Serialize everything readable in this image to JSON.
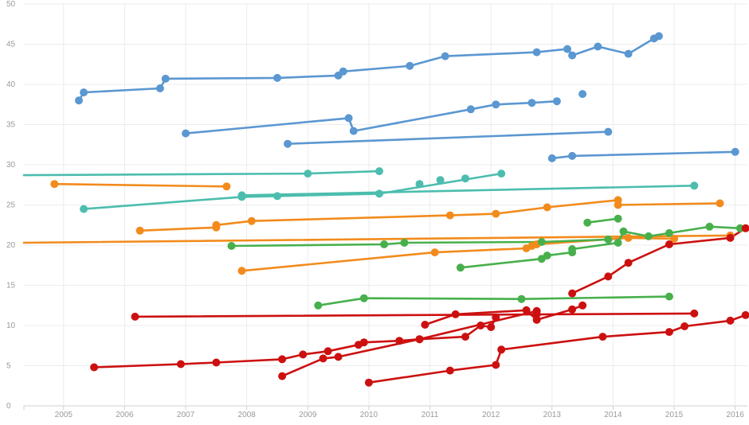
{
  "chart_data": {
    "type": "line",
    "title": "",
    "xlabel": "",
    "ylabel": "",
    "xlim": [
      2004.35,
      2016.2
    ],
    "ylim": [
      0,
      50
    ],
    "grid": true,
    "legend": "none",
    "x_ticks": [
      "2005",
      "2006",
      "2007",
      "2008",
      "2009",
      "2010",
      "2011",
      "2012",
      "2013",
      "2014",
      "2015",
      "2016"
    ],
    "x_tick_values": [
      2005,
      2006,
      2007,
      2008,
      2009,
      2010,
      2011,
      2012,
      2013,
      2014,
      2015,
      2016
    ],
    "y_ticks": [
      "0",
      "5",
      "10",
      "15",
      "20",
      "25",
      "30",
      "35",
      "40",
      "45",
      "50"
    ],
    "y_tick_values": [
      0,
      5,
      10,
      15,
      20,
      25,
      30,
      35,
      40,
      45,
      50
    ],
    "series": [
      {
        "color": "#5b97d1",
        "points": [
          [
            2005.25,
            38
          ],
          [
            2005.33,
            39
          ],
          [
            2006.58,
            39.5
          ],
          [
            2006.67,
            40.7
          ],
          [
            2008.5,
            40.8
          ],
          [
            2009.5,
            41.1
          ],
          [
            2009.58,
            41.6
          ],
          [
            2010.67,
            42.3
          ],
          [
            2011.25,
            43.5
          ],
          [
            2012.75,
            44
          ],
          [
            2013.25,
            44.4
          ],
          [
            2013.33,
            43.6
          ],
          [
            2013.75,
            44.7
          ],
          [
            2014.25,
            43.8
          ],
          [
            2014.67,
            45.7
          ],
          [
            2014.75,
            46
          ]
        ]
      },
      {
        "color": "#5b97d1",
        "points": [
          [
            2007,
            33.9
          ],
          [
            2009.67,
            35.8
          ],
          [
            2009.75,
            34.2
          ],
          [
            2011.67,
            36.9
          ],
          [
            2012.08,
            37.5
          ],
          [
            2012.67,
            37.7
          ],
          [
            2013.08,
            37.9
          ]
        ]
      },
      {
        "color": "#5b97d1",
        "points": [
          [
            2013.5,
            38.8
          ]
        ]
      },
      {
        "color": "#5b97d1",
        "points": [
          [
            2008.67,
            32.6
          ],
          [
            2013.92,
            34.1
          ]
        ]
      },
      {
        "color": "#5b97d1",
        "points": [
          [
            2013,
            30.8
          ],
          [
            2013.33,
            31.1
          ],
          [
            2016,
            31.6
          ]
        ]
      },
      {
        "color": "#4cbdae",
        "points": [
          [
            2004.35,
            28.7
          ],
          [
            2009,
            28.9
          ],
          [
            2010.17,
            29.2
          ]
        ]
      },
      {
        "color": "#4cbdae",
        "points": [
          [
            2005.33,
            24.5
          ],
          [
            2007.92,
            26.0
          ],
          [
            2010.17,
            26.4
          ],
          [
            2012.17,
            28.9
          ]
        ],
        "dot_all": false,
        "dots": [
          [
            2005.33,
            24.5
          ],
          [
            2007.92,
            26.0
          ],
          [
            2008.5,
            26.1
          ],
          [
            2010.17,
            26.4
          ],
          [
            2010.83,
            27.6
          ],
          [
            2011.17,
            28.1
          ],
          [
            2011.58,
            28.3
          ],
          [
            2012.17,
            28.9
          ]
        ]
      },
      {
        "color": "#4cbdae",
        "points": [
          [
            2007.92,
            26.2
          ],
          [
            2015.33,
            27.4
          ]
        ]
      },
      {
        "color": "#f28b1c",
        "points": [
          [
            2004.85,
            27.6
          ],
          [
            2007.67,
            27.3
          ]
        ]
      },
      {
        "color": "#f28b1c",
        "points": [
          [
            2004.35,
            20.3
          ],
          [
            2015.92,
            21.2
          ]
        ]
      },
      {
        "color": "#f28b1c",
        "points": [
          [
            2006.25,
            21.8
          ],
          [
            2007.5,
            22.2
          ],
          [
            2007.5,
            22.5
          ],
          [
            2008.08,
            23
          ],
          [
            2011.33,
            23.7
          ],
          [
            2012.08,
            23.9
          ],
          [
            2012.92,
            24.7
          ],
          [
            2014.08,
            25.6
          ],
          [
            2014.08,
            25
          ],
          [
            2015.75,
            25.2
          ]
        ]
      },
      {
        "color": "#f28b1c",
        "points": [
          [
            2007.92,
            16.8
          ],
          [
            2011.08,
            19.1
          ],
          [
            2012.58,
            19.6
          ],
          [
            2012.67,
            19.9
          ],
          [
            2012.75,
            20.1
          ],
          [
            2014.25,
            20.9
          ],
          [
            2015,
            20.8
          ]
        ]
      },
      {
        "color": "#47b04c",
        "points": [
          [
            2007.75,
            19.9
          ],
          [
            2010.25,
            20.1
          ],
          [
            2010.58,
            20.3
          ],
          [
            2012.83,
            20.4
          ],
          [
            2013.92,
            20.7
          ]
        ]
      },
      {
        "color": "#47b04c",
        "points": [
          [
            2013.58,
            22.8
          ],
          [
            2014.08,
            23.3
          ]
        ]
      },
      {
        "color": "#47b04c",
        "points": [
          [
            2011.5,
            17.2
          ],
          [
            2012.83,
            18.3
          ],
          [
            2012.92,
            18.7
          ],
          [
            2013.33,
            19.1
          ],
          [
            2013.33,
            19.5
          ],
          [
            2014.08,
            20.3
          ],
          [
            2014.17,
            21.7
          ],
          [
            2014.58,
            21.1
          ],
          [
            2014.92,
            21.5
          ],
          [
            2015.58,
            22.3
          ],
          [
            2016.08,
            22.1
          ]
        ]
      },
      {
        "color": "#47b04c",
        "points": [
          [
            2009.17,
            12.5
          ],
          [
            2009.92,
            13.4
          ],
          [
            2012.5,
            13.3
          ],
          [
            2014.92,
            13.6
          ]
        ]
      },
      {
        "color": "#cc1010",
        "points": [
          [
            2006.17,
            11.1
          ],
          [
            2015.33,
            11.5
          ]
        ]
      },
      {
        "color": "#cc1010",
        "points": [
          [
            2005.5,
            4.8
          ],
          [
            2006.92,
            5.2
          ],
          [
            2007.5,
            5.4
          ],
          [
            2008.58,
            5.8
          ],
          [
            2008.92,
            6.4
          ],
          [
            2009.33,
            6.8
          ],
          [
            2009.83,
            7.6
          ],
          [
            2009.92,
            7.9
          ],
          [
            2010.5,
            8.1
          ],
          [
            2010.83,
            8.3
          ],
          [
            2011.58,
            8.6
          ],
          [
            2011.83,
            10
          ],
          [
            2012,
            9.8
          ],
          [
            2012.08,
            11
          ]
        ]
      },
      {
        "color": "#cc1010",
        "points": [
          [
            2008.58,
            3.7
          ],
          [
            2009.25,
            5.9
          ],
          [
            2009.5,
            6.1
          ],
          [
            2010.83,
            8.3
          ],
          [
            2012.75,
            11.8
          ],
          [
            2012.75,
            11.4
          ]
        ]
      },
      {
        "color": "#cc1010",
        "points": [
          [
            2010.92,
            10.1
          ],
          [
            2011.42,
            11.4
          ],
          [
            2012.58,
            11.9
          ],
          [
            2012.75,
            10.7
          ],
          [
            2013.33,
            12
          ],
          [
            2013.5,
            12.5
          ]
        ]
      },
      {
        "color": "#cc1010",
        "points": [
          [
            2010,
            2.9
          ],
          [
            2011.33,
            4.4
          ],
          [
            2012.08,
            5.1
          ],
          [
            2012.17,
            7
          ],
          [
            2013.83,
            8.6
          ],
          [
            2014.92,
            9.2
          ],
          [
            2015.17,
            9.9
          ],
          [
            2015.92,
            10.6
          ],
          [
            2016.17,
            11.3
          ]
        ]
      },
      {
        "color": "#cc1010",
        "points": [
          [
            2013.33,
            14
          ],
          [
            2013.92,
            16.1
          ],
          [
            2014.25,
            17.8
          ],
          [
            2014.92,
            20.1
          ],
          [
            2015.92,
            20.9
          ],
          [
            2016.17,
            22.1
          ]
        ]
      }
    ]
  }
}
